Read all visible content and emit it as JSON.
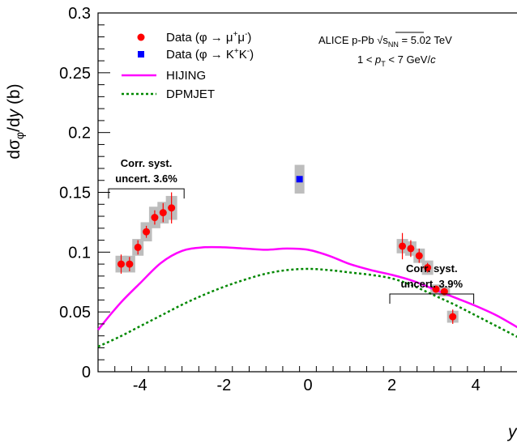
{
  "chart_data": {
    "type": "scatter",
    "title": "",
    "xlabel": "y",
    "ylabel_parts": {
      "pre": "dσ",
      "sub": "φ",
      "mid": "/d",
      "var": "y",
      "post": " (b)"
    },
    "xlim": [
      -5,
      5
    ],
    "ylim": [
      0,
      0.3
    ],
    "x_ticks": [
      -4,
      -2,
      0,
      2,
      4
    ],
    "x_tick_labels": [
      "-4",
      "-2",
      "0",
      "2",
      "4"
    ],
    "y_ticks": [
      0,
      0.05,
      0.1,
      0.15,
      0.2,
      0.25,
      0.3
    ],
    "y_tick_labels": [
      "0",
      "0.05",
      "0.1",
      "0.15",
      "0.2",
      "0.25",
      "0.3"
    ],
    "colors": {
      "mumu": "#ff0000",
      "kk": "#0000ff",
      "hijing": "#ff00ff",
      "dpmjet": "#008800",
      "box": "#bdbdbd"
    },
    "legend": {
      "position": "top-left",
      "mumu": {
        "pre": "Data (φ → μ",
        "sup1": "+",
        "mid": "μ",
        "sup2": "-",
        "post": ")"
      },
      "kk": {
        "pre": "Data (φ → K",
        "sup1": "+",
        "mid": "K",
        "sup2": "-",
        "post": ")"
      },
      "hijing": "HIJING",
      "dpmjet": "DPMJET"
    },
    "annotation": {
      "line1_pre": "ALICE p-Pb ",
      "sqrt_body": "s",
      "sqrt_sub": "NN",
      "line1_post": " = 5.02 TeV",
      "line2_pre": "1 < ",
      "line2_var": "p",
      "line2_sub": "T",
      "line2_post": " < 7 GeV/",
      "line2_c": "c"
    },
    "corr_syst": [
      {
        "label1": "Corr. syst.",
        "label2": "uncert. 3.6%",
        "x_range": [
          -4.75,
          -2.95
        ],
        "y": 0.153
      },
      {
        "label1": "Corr. syst.",
        "label2": "uncert. 3.9%",
        "x_range": [
          1.95,
          3.95
        ],
        "y": 0.065
      }
    ],
    "series": [
      {
        "name": "Data (φ → μ⁺μ⁻)",
        "kind": "points",
        "x": [
          -4.45,
          -4.25,
          -4.05,
          -3.85,
          -3.65,
          -3.45,
          -3.25
        ],
        "y": [
          0.09,
          0.09,
          0.104,
          0.117,
          0.129,
          0.133,
          0.137
        ],
        "stat_err": [
          0.008,
          0.006,
          0.006,
          0.005,
          0.006,
          0.008,
          0.013
        ],
        "sys_err": [
          0.007,
          0.007,
          0.007,
          0.008,
          0.009,
          0.009,
          0.01
        ]
      },
      {
        "name": "Data (φ → μ⁺μ⁻)",
        "kind": "points",
        "x": [
          2.25,
          2.45,
          2.65,
          2.85,
          3.05,
          3.25,
          3.45
        ],
        "y": [
          0.105,
          0.103,
          0.097,
          0.087,
          0.069,
          0.067,
          0.046
        ],
        "stat_err": [
          0.011,
          0.007,
          0.006,
          0.004,
          0.003,
          0.003,
          0.006
        ],
        "sys_err": [
          0.006,
          0.006,
          0.006,
          0.006,
          0.004,
          0.004,
          0.005
        ]
      },
      {
        "name": "Data (φ → K⁺K⁻)",
        "kind": "square",
        "x": [
          -0.2
        ],
        "y": [
          0.161
        ],
        "stat_err": [
          0.002
        ],
        "sys_err": [
          0.012
        ]
      },
      {
        "name": "HIJING",
        "kind": "line",
        "x": [
          -5.0,
          -4.7,
          -4.4,
          -4.0,
          -3.5,
          -3.0,
          -2.5,
          -2.0,
          -1.5,
          -1.0,
          -0.5,
          0.0,
          0.5,
          1.0,
          1.5,
          2.0,
          2.5,
          3.0,
          3.5,
          4.0,
          4.5,
          5.0
        ],
        "y": [
          0.035,
          0.048,
          0.06,
          0.074,
          0.091,
          0.101,
          0.104,
          0.104,
          0.103,
          0.102,
          0.103,
          0.102,
          0.097,
          0.09,
          0.085,
          0.081,
          0.076,
          0.069,
          0.062,
          0.055,
          0.047,
          0.037
        ]
      },
      {
        "name": "DPMJET",
        "kind": "line",
        "x": [
          -5.0,
          -4.5,
          -4.0,
          -3.5,
          -3.0,
          -2.5,
          -2.0,
          -1.5,
          -1.0,
          -0.5,
          0.0,
          0.5,
          1.0,
          1.5,
          2.0,
          2.5,
          3.0,
          3.5,
          4.0,
          4.5,
          5.0
        ],
        "y": [
          0.021,
          0.029,
          0.038,
          0.047,
          0.056,
          0.064,
          0.071,
          0.077,
          0.082,
          0.085,
          0.086,
          0.085,
          0.083,
          0.081,
          0.078,
          0.072,
          0.064,
          0.056,
          0.047,
          0.038,
          0.029
        ]
      }
    ]
  }
}
